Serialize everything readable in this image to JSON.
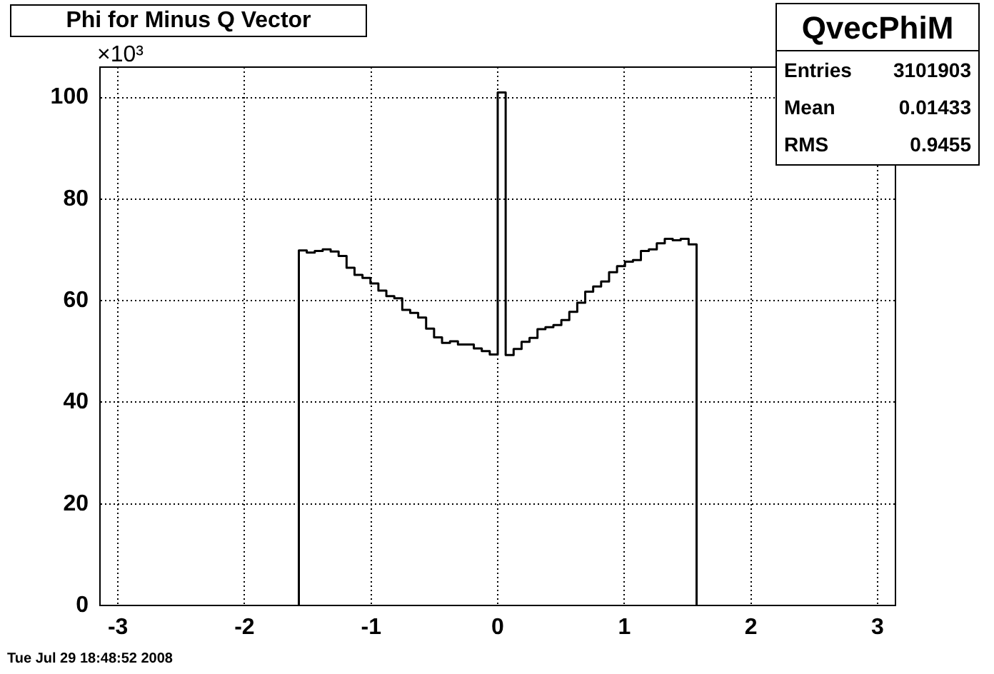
{
  "chart_data": {
    "type": "step",
    "title": "Phi for Minus Q Vector",
    "x": [
      -1.5708,
      -1.5708,
      -1.508,
      -1.4451,
      -1.3823,
      -1.3195,
      -1.2566,
      -1.1938,
      -1.131,
      -1.0681,
      -1.0053,
      -0.9425,
      -0.8796,
      -0.8168,
      -0.754,
      -0.6912,
      -0.6283,
      -0.5655,
      -0.5027,
      -0.4398,
      -0.377,
      -0.3142,
      -0.2513,
      -0.1885,
      -0.1257,
      -0.0628,
      0,
      0.0628,
      0.1257,
      0.1885,
      0.2513,
      0.3142,
      0.377,
      0.4398,
      0.5027,
      0.5655,
      0.6283,
      0.6912,
      0.754,
      0.8168,
      0.8796,
      0.9425,
      1.0053,
      1.0681,
      1.131,
      1.1938,
      1.2566,
      1.3195,
      1.3823,
      1.4451,
      1.508,
      1.5708
    ],
    "values": [
      0,
      69.9,
      69.5,
      69.8,
      70.1,
      69.7,
      68.8,
      66.5,
      65.1,
      64.5,
      63.4,
      62.0,
      60.9,
      60.5,
      58.2,
      57.6,
      56.7,
      54.5,
      52.8,
      51.7,
      52.0,
      51.4,
      51.4,
      50.6,
      50.1,
      49.4,
      101,
      49.3,
      50.5,
      51.9,
      52.7,
      54.4,
      54.8,
      55.2,
      56.2,
      57.8,
      59.6,
      61.8,
      62.8,
      63.8,
      65.6,
      66.8,
      67.7,
      68.0,
      69.8,
      70.1,
      71.3,
      72.2,
      71.9,
      72.2,
      71.1,
      0
    ],
    "color": "#000000",
    "xlim": [
      -3.1416,
      3.1416
    ],
    "xticks": [
      -3,
      -2,
      -1,
      0,
      1,
      2,
      3
    ],
    "ylim": [
      0,
      106
    ],
    "yticks": [
      0,
      20,
      40,
      60,
      80,
      100
    ],
    "grid": true,
    "legend": false,
    "annotations": [
      "×10³",
      "QvecPhiM",
      "Entries",
      "3101903",
      "Mean",
      "0.01433",
      "RMS",
      "0.9455",
      "Tue Jul 29 18:48:52 2008"
    ]
  }
}
